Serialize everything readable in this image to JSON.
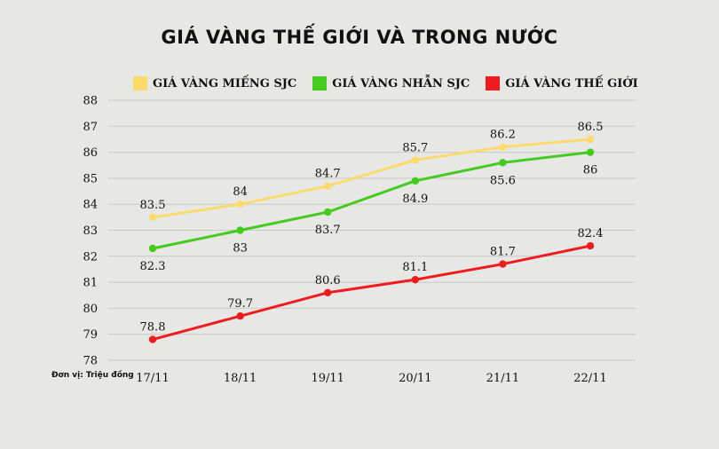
{
  "chart_data": {
    "type": "line",
    "title": "GIÁ VÀNG THẾ GIỚI VÀ TRONG NƯỚC",
    "unit_note": "Đơn vị: Triệu đồng",
    "categories": [
      "17/11",
      "18/11",
      "19/11",
      "20/11",
      "21/11",
      "22/11"
    ],
    "ylim": [
      78,
      88
    ],
    "yticks": [
      78,
      79,
      80,
      81,
      82,
      83,
      84,
      85,
      86,
      87,
      88
    ],
    "grid": true,
    "legend_position": "top",
    "series": [
      {
        "name": "GIÁ VÀNG MIẾNG SJC",
        "color": "#fbdb6b",
        "values": [
          83.5,
          84,
          84.7,
          85.7,
          86.2,
          86.5
        ],
        "value_labels": [
          "83.5",
          "84",
          "84.7",
          "85.7",
          "86.2",
          "86.5"
        ],
        "label_position": "above"
      },
      {
        "name": "GIÁ VÀNG NHẪN SJC",
        "color": "#43cb1d",
        "values": [
          82.3,
          83,
          83.7,
          84.9,
          85.6,
          86
        ],
        "value_labels": [
          "82.3",
          "83",
          "83.7",
          "84.9",
          "85.6",
          "86"
        ],
        "label_position": "below"
      },
      {
        "name": "GIÁ VÀNG THẾ GIỚI",
        "color": "#ee1c1c",
        "values": [
          78.8,
          79.7,
          80.6,
          81.1,
          81.7,
          82.4
        ],
        "value_labels": [
          "78.8",
          "79.7",
          "80.6",
          "81.1",
          "81.7",
          "82.4"
        ],
        "label_position": "above"
      }
    ]
  }
}
